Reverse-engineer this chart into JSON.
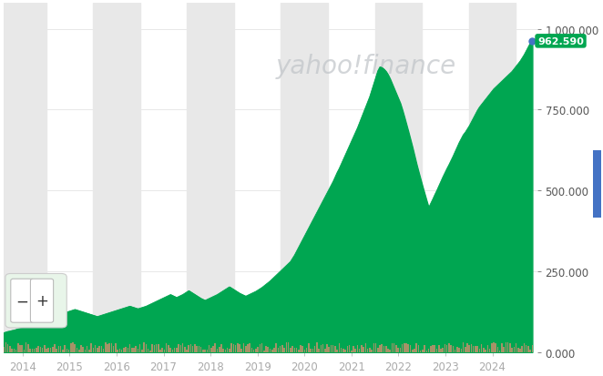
{
  "title": "yahoo!finance",
  "title_color": "#c0c4c8",
  "title_fontsize": 20,
  "bg_color": "#ffffff",
  "plot_bg_color": "#ffffff",
  "line_color": "#00a651",
  "fill_color": "#00a651",
  "volume_color": "#b8906a",
  "ytick_values": [
    0,
    250000,
    500000,
    750000,
    1000000
  ],
  "ylim": [
    0,
    1080000
  ],
  "xlim_start": 2013.6,
  "xlim_end": 2024.95,
  "current_price": "962.590",
  "current_price_dot_color": "#4472c4",
  "current_price_bg_color": "#00a651",
  "stripe_color": "#e8e8e8",
  "stripe_alpha": 1.0,
  "last_value": 962590,
  "price_data": [
    60000,
    62000,
    64000,
    65000,
    67000,
    68000,
    70000,
    72000,
    73000,
    75000,
    76000,
    78000,
    80000,
    82000,
    84000,
    86000,
    88000,
    90000,
    93000,
    96000,
    99000,
    102000,
    105000,
    108000,
    110000,
    113000,
    115000,
    117000,
    118000,
    120000,
    122000,
    124000,
    126000,
    128000,
    130000,
    132000,
    130000,
    128000,
    126000,
    124000,
    122000,
    120000,
    118000,
    116000,
    114000,
    112000,
    110000,
    112000,
    114000,
    116000,
    118000,
    120000,
    122000,
    124000,
    126000,
    128000,
    130000,
    132000,
    134000,
    136000,
    138000,
    140000,
    142000,
    140000,
    138000,
    136000,
    134000,
    136000,
    138000,
    140000,
    142000,
    145000,
    148000,
    151000,
    154000,
    157000,
    160000,
    163000,
    166000,
    169000,
    172000,
    175000,
    178000,
    175000,
    172000,
    169000,
    172000,
    175000,
    178000,
    182000,
    186000,
    190000,
    186000,
    182000,
    178000,
    174000,
    170000,
    166000,
    163000,
    160000,
    163000,
    166000,
    169000,
    172000,
    175000,
    178000,
    182000,
    186000,
    190000,
    194000,
    198000,
    202000,
    198000,
    194000,
    190000,
    186000,
    182000,
    179000,
    176000,
    173000,
    176000,
    179000,
    182000,
    185000,
    188000,
    192000,
    196000,
    200000,
    205000,
    210000,
    215000,
    220000,
    226000,
    232000,
    238000,
    244000,
    250000,
    256000,
    262000,
    268000,
    274000,
    280000,
    290000,
    300000,
    312000,
    324000,
    336000,
    348000,
    360000,
    372000,
    384000,
    396000,
    408000,
    420000,
    432000,
    444000,
    456000,
    468000,
    480000,
    492000,
    504000,
    516000,
    528000,
    542000,
    556000,
    568000,
    582000,
    596000,
    610000,
    624000,
    638000,
    652000,
    666000,
    680000,
    694000,
    710000,
    726000,
    742000,
    758000,
    774000,
    790000,
    810000,
    830000,
    850000,
    870000,
    882000,
    880000,
    875000,
    868000,
    858000,
    845000,
    830000,
    815000,
    800000,
    785000,
    770000,
    750000,
    728000,
    705000,
    682000,
    658000,
    634000,
    608000,
    582000,
    558000,
    535000,
    512000,
    490000,
    468000,
    447000,
    460000,
    473000,
    487000,
    500000,
    514000,
    528000,
    542000,
    555000,
    568000,
    580000,
    593000,
    606000,
    620000,
    634000,
    648000,
    660000,
    672000,
    680000,
    690000,
    700000,
    712000,
    724000,
    736000,
    748000,
    758000,
    766000,
    774000,
    782000,
    790000,
    798000,
    806000,
    814000,
    820000,
    826000,
    832000,
    838000,
    844000,
    850000,
    856000,
    862000,
    868000,
    876000,
    884000,
    892000,
    900000,
    910000,
    920000,
    932000,
    944000,
    956000,
    962590
  ],
  "volume_data_scale": 0.028
}
